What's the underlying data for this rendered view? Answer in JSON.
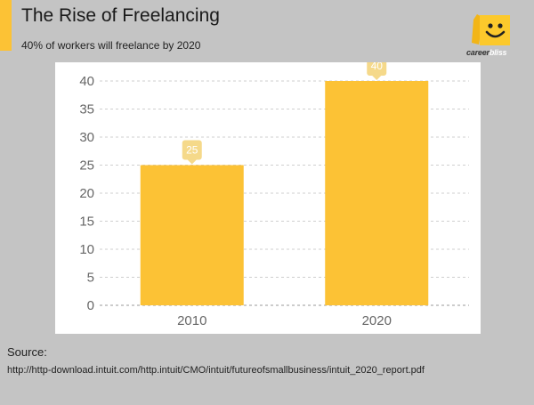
{
  "header": {
    "title": "The Rise of Freelancing",
    "subtitle": "40% of workers will freelance by 2020"
  },
  "logo": {
    "icon": "smiley-face-icon",
    "word_part1": "career",
    "word_part2": "bliss"
  },
  "colors": {
    "accent": "#fcc235",
    "bar": "#fcc235",
    "label_badge": "#f5d98a",
    "background": "#c4c4c4"
  },
  "chart_data": {
    "type": "bar",
    "categories": [
      "2010",
      "2020"
    ],
    "values": [
      25,
      40
    ],
    "title": "",
    "xlabel": "",
    "ylabel": "",
    "ylim": [
      0,
      40
    ],
    "yticks": [
      0,
      5,
      10,
      15,
      20,
      25,
      30,
      35,
      40
    ],
    "grid": true,
    "data_labels": [
      "25",
      "40"
    ]
  },
  "source": {
    "label": "Source:",
    "url": "http://http-download.intuit.com/http.intuit/CMO/intuit/futureofsmallbusiness/intuit_2020_report.pdf"
  }
}
